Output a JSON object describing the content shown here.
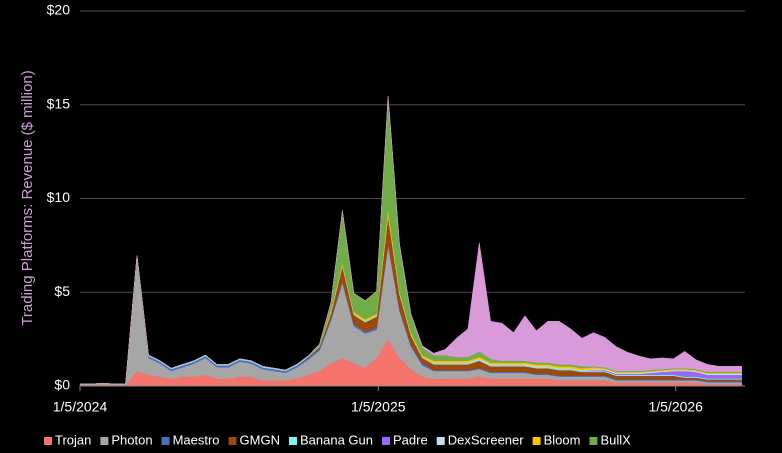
{
  "chart_data": {
    "type": "stacked_area",
    "y_label": "Trading Platforms: Revenue ($ million)",
    "x": [
      "1/5/2024",
      "1/19/2024",
      "2/2/2024",
      "2/16/2024",
      "3/1/2024",
      "3/15/2024",
      "3/29/2024",
      "4/12/2024",
      "4/26/2024",
      "5/10/2024",
      "5/24/2024",
      "6/7/2024",
      "6/21/2024",
      "7/5/2024",
      "7/19/2024",
      "8/2/2024",
      "8/16/2024",
      "8/30/2024",
      "9/13/2024",
      "9/27/2024",
      "10/11/2024",
      "10/25/2024",
      "11/8/2024",
      "11/22/2024",
      "12/6/2024",
      "12/20/2024",
      "1/3/2025",
      "1/17/2025",
      "1/31/2025",
      "2/14/2025",
      "2/28/2025",
      "3/14/2025",
      "3/28/2025",
      "4/11/2025",
      "4/25/2025",
      "5/9/2025",
      "5/23/2025",
      "6/6/2025",
      "6/20/2025",
      "7/4/2025",
      "7/18/2025",
      "8/1/2025",
      "8/15/2025",
      "8/29/2025",
      "9/12/2025",
      "9/26/2025",
      "10/10/2025",
      "10/24/2025",
      "11/7/2025",
      "11/21/2025",
      "12/5/2025",
      "12/19/2025",
      "1/2/2026",
      "1/16/2026",
      "1/30/2026",
      "2/13/2026",
      "2/27/2026",
      "3/13/2026",
      "3/27/2026"
    ],
    "xlim": [
      "1/5/2024",
      "3/31/2026"
    ],
    "xticks": [
      "1/5/2024",
      "1/5/2025",
      "1/5/2026"
    ],
    "ylim": [
      0,
      20
    ],
    "yticks": [
      {
        "value": 0,
        "label": "$0"
      },
      {
        "value": 5,
        "label": "$5"
      },
      {
        "value": 10,
        "label": "$10"
      },
      {
        "value": 15,
        "label": "$15"
      },
      {
        "value": 20,
        "label": "$20"
      }
    ],
    "grid": true,
    "legend": "bottom",
    "series": [
      {
        "name": "Trojan",
        "color": "#f4736b",
        "values": [
          0.05,
          0.05,
          0.08,
          0.05,
          0.05,
          0.8,
          0.6,
          0.5,
          0.4,
          0.5,
          0.5,
          0.6,
          0.4,
          0.4,
          0.5,
          0.5,
          0.3,
          0.3,
          0.3,
          0.4,
          0.6,
          0.8,
          1.2,
          1.5,
          1.2,
          1.0,
          1.5,
          2.5,
          1.5,
          0.9,
          0.5,
          0.4,
          0.4,
          0.4,
          0.4,
          0.5,
          0.4,
          0.4,
          0.4,
          0.4,
          0.4,
          0.4,
          0.3,
          0.3,
          0.3,
          0.3,
          0.3,
          0.2,
          0.2,
          0.2,
          0.2,
          0.2,
          0.2,
          0.2,
          0.2,
          0.1,
          0.1,
          0.1,
          0.1
        ]
      },
      {
        "name": "Photon",
        "color": "#a6a6a6",
        "values": [
          0.05,
          0.05,
          0.07,
          0.05,
          0.05,
          6.0,
          0.9,
          0.7,
          0.4,
          0.5,
          0.7,
          0.9,
          0.6,
          0.6,
          0.8,
          0.7,
          0.6,
          0.5,
          0.4,
          0.6,
          0.8,
          1.1,
          2.3,
          4.0,
          2.0,
          1.8,
          1.5,
          5.0,
          2.5,
          1.2,
          0.6,
          0.4,
          0.4,
          0.4,
          0.4,
          0.4,
          0.3,
          0.3,
          0.3,
          0.3,
          0.2,
          0.2,
          0.2,
          0.2,
          0.2,
          0.2,
          0.2,
          0.1,
          0.1,
          0.1,
          0.1,
          0.1,
          0.1,
          0.1,
          0.1,
          0.1,
          0.1,
          0.1,
          0.1
        ]
      },
      {
        "name": "Maestro",
        "color": "#4472c4",
        "values": [
          0,
          0,
          0,
          0,
          0,
          0.1,
          0.1,
          0.1,
          0.1,
          0.1,
          0.1,
          0.1,
          0.1,
          0.1,
          0.1,
          0.1,
          0.1,
          0.1,
          0.1,
          0.1,
          0.1,
          0.1,
          0.1,
          0.1,
          0.1,
          0.1,
          0.1,
          0.1,
          0.1,
          0.1,
          0.1,
          0.05,
          0.05,
          0.05,
          0.05,
          0.05,
          0.05,
          0.05,
          0.05,
          0.05,
          0.05,
          0.05,
          0.05,
          0.05,
          0.05,
          0.05,
          0.05,
          0.05,
          0.05,
          0.05,
          0.05,
          0.05,
          0.05,
          0.05,
          0.05,
          0.05,
          0.05,
          0.05,
          0.05
        ]
      },
      {
        "name": "GMGN",
        "color": "#9e480e",
        "values": [
          0,
          0,
          0,
          0,
          0,
          0,
          0,
          0,
          0,
          0,
          0,
          0,
          0,
          0,
          0,
          0,
          0,
          0,
          0,
          0,
          0.05,
          0.1,
          0.3,
          0.8,
          0.5,
          0.5,
          0.6,
          1.5,
          0.8,
          0.5,
          0.3,
          0.3,
          0.3,
          0.3,
          0.3,
          0.4,
          0.3,
          0.3,
          0.3,
          0.3,
          0.3,
          0.3,
          0.3,
          0.3,
          0.2,
          0.2,
          0.2,
          0.2,
          0.2,
          0.2,
          0.2,
          0.2,
          0.2,
          0.1,
          0.1,
          0.1,
          0.1,
          0.1,
          0.1
        ]
      },
      {
        "name": "Banana Gun",
        "color": "#7ff0f0",
        "values": [
          0,
          0,
          0,
          0,
          0,
          0.05,
          0.05,
          0.05,
          0.05,
          0.05,
          0.05,
          0.05,
          0.05,
          0.05,
          0.05,
          0.05,
          0.05,
          0.05,
          0.05,
          0.05,
          0.05,
          0.05,
          0.05,
          0.05,
          0.05,
          0.05,
          0.05,
          0.05,
          0.05,
          0.05,
          0.05,
          0.05,
          0.05,
          0.05,
          0.05,
          0.05,
          0.05,
          0.05,
          0.05,
          0.05,
          0.05,
          0.05,
          0.05,
          0.05,
          0.05,
          0.05,
          0.05,
          0.05,
          0.05,
          0.05,
          0.05,
          0.05,
          0.05,
          0.05,
          0.05,
          0.05,
          0.05,
          0.05,
          0.05
        ]
      },
      {
        "name": "Padre",
        "color": "#9966ff",
        "values": [
          0,
          0,
          0,
          0,
          0,
          0,
          0,
          0,
          0,
          0,
          0,
          0,
          0,
          0,
          0,
          0,
          0,
          0,
          0,
          0,
          0,
          0,
          0,
          0,
          0,
          0,
          0,
          0,
          0,
          0,
          0,
          0,
          0,
          0,
          0,
          0,
          0,
          0,
          0,
          0,
          0,
          0,
          0,
          0,
          0,
          0.05,
          0.05,
          0.05,
          0.05,
          0.05,
          0.1,
          0.15,
          0.2,
          0.3,
          0.25,
          0.2,
          0.2,
          0.2,
          0.2
        ]
      },
      {
        "name": "DexScreener",
        "color": "#bde0f5",
        "values": [
          0,
          0,
          0,
          0,
          0,
          0,
          0,
          0,
          0,
          0,
          0,
          0,
          0,
          0,
          0,
          0,
          0,
          0,
          0,
          0,
          0,
          0,
          0,
          0,
          0,
          0,
          0,
          0,
          0,
          0,
          0,
          0.05,
          0.05,
          0.05,
          0.05,
          0.05,
          0.05,
          0.05,
          0.05,
          0.05,
          0.05,
          0.05,
          0.05,
          0.05,
          0.05,
          0.05,
          0.05,
          0.05,
          0.05,
          0.05,
          0.05,
          0.05,
          0.05,
          0.05,
          0.05,
          0.05,
          0.05,
          0.05,
          0.05
        ]
      },
      {
        "name": "Bloom",
        "color": "#ffc000",
        "values": [
          0,
          0,
          0,
          0,
          0,
          0,
          0,
          0,
          0,
          0,
          0,
          0,
          0,
          0,
          0,
          0,
          0,
          0,
          0,
          0,
          0,
          0,
          0.1,
          0.1,
          0.1,
          0.1,
          0.1,
          0.3,
          0.1,
          0.1,
          0.1,
          0.1,
          0.1,
          0.1,
          0.1,
          0.1,
          0.1,
          0.1,
          0.1,
          0.1,
          0.1,
          0.1,
          0.1,
          0.1,
          0.1,
          0.1,
          0.05,
          0.05,
          0.05,
          0.05,
          0.05,
          0.05,
          0.05,
          0.05,
          0.05,
          0.05,
          0.05,
          0.05,
          0.05
        ]
      },
      {
        "name": "BullX",
        "color": "#70ad47",
        "values": [
          0,
          0,
          0,
          0,
          0,
          0,
          0,
          0,
          0,
          0,
          0,
          0,
          0,
          0,
          0,
          0,
          0,
          0,
          0,
          0,
          0,
          0.1,
          0.4,
          2.8,
          1.0,
          1.0,
          1.2,
          6.0,
          2.5,
          1.0,
          0.4,
          0.3,
          0.3,
          0.2,
          0.2,
          0.3,
          0.2,
          0.1,
          0.1,
          0.1,
          0.1,
          0.1,
          0.1,
          0.1,
          0.1,
          0.05,
          0.05,
          0.05,
          0.05,
          0.05,
          0.05,
          0.05,
          0.05,
          0.05,
          0.05,
          0.05,
          0.05,
          0.05,
          0.05
        ]
      },
      {
        "color": "#d99ad9",
        "values": [
          0,
          0,
          0,
          0,
          0,
          0,
          0,
          0,
          0,
          0,
          0,
          0,
          0,
          0,
          0,
          0,
          0,
          0,
          0,
          0,
          0,
          0,
          0,
          0,
          0,
          0,
          0,
          0,
          0,
          0,
          0.1,
          0.1,
          0.3,
          1.0,
          1.5,
          5.8,
          2.0,
          2.0,
          1.5,
          2.4,
          1.7,
          2.2,
          2.3,
          1.9,
          1.5,
          1.8,
          1.6,
          1.3,
          1.0,
          0.8,
          0.6,
          0.6,
          0.5,
          0.9,
          0.5,
          0.4,
          0.3,
          0.3,
          0.3
        ]
      }
    ]
  }
}
